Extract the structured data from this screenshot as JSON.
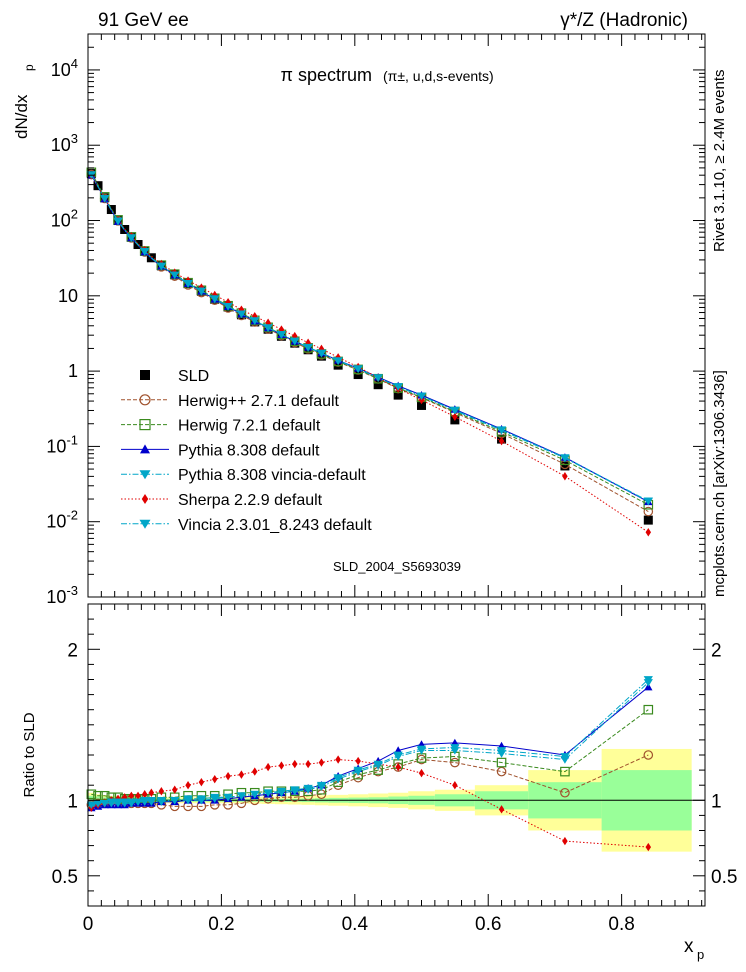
{
  "header": {
    "left": "91 GeV ee",
    "right": "γ*/Z (Hadronic)",
    "side_top": "Rivet 3.1.10, ≥ 2.4M events",
    "side_bottom": "mcplots.cern.ch [arXiv:1306.3436]"
  },
  "chart_data": {
    "type": "line",
    "title_main": "π spectrum",
    "title_sub": "(π±, u,d,s-events)",
    "watermark": "SLD_2004_S5693039",
    "xlabel": "x",
    "xlabel_sub": "p",
    "ylabel": "dN/dx",
    "ylabel_sub": "p",
    "ratio_ylabel": "Ratio to SLD",
    "xlim": [
      0,
      0.925
    ],
    "ylim": [
      0.001,
      30000
    ],
    "yscale": "log",
    "ratio_ylim": [
      0.3,
      2.3
    ],
    "x_ticks": [
      "0",
      "0.2",
      "0.4",
      "0.6",
      "0.8"
    ],
    "y_ticks": [
      "10^-3",
      "10^-2",
      "10^-1",
      "1",
      "10",
      "10^2",
      "10^3",
      "10^4"
    ],
    "ratio_ticks": [
      "0.5",
      "1",
      "2"
    ],
    "legend_position": "bottom-left",
    "x": [
      0.005,
      0.015,
      0.025,
      0.035,
      0.045,
      0.055,
      0.065,
      0.075,
      0.085,
      0.095,
      0.11,
      0.13,
      0.15,
      0.17,
      0.19,
      0.21,
      0.23,
      0.25,
      0.27,
      0.29,
      0.31,
      0.33,
      0.35,
      0.375,
      0.405,
      0.435,
      0.465,
      0.5,
      0.55,
      0.62,
      0.715,
      0.84
    ],
    "series": [
      {
        "name": "SLD",
        "color": "#000000",
        "marker": "square",
        "values": [
          420,
          290,
          200,
          140,
          100,
          76,
          60,
          48,
          39,
          32,
          25,
          19,
          14.5,
          11.5,
          9.0,
          7.1,
          5.6,
          4.5,
          3.6,
          2.9,
          2.35,
          1.92,
          1.58,
          1.2,
          0.9,
          0.66,
          0.48,
          0.35,
          0.225,
          0.125,
          0.055,
          0.0105
        ]
      },
      {
        "name": "Herwig++ 2.7.1 default",
        "color": "#a0522d",
        "marker": "circle-open",
        "line": "dashed",
        "ratio": [
          0.97,
          0.98,
          0.98,
          0.99,
          0.99,
          0.98,
          0.98,
          0.98,
          0.98,
          0.98,
          0.97,
          0.96,
          0.96,
          0.96,
          0.97,
          0.97,
          0.98,
          1.0,
          1.01,
          1.02,
          1.02,
          1.03,
          1.04,
          1.1,
          1.15,
          1.19,
          1.22,
          1.27,
          1.25,
          1.19,
          1.05,
          1.3
        ]
      },
      {
        "name": "Herwig 7.2.1 default",
        "color": "#3a8a1e",
        "marker": "square-open",
        "line": "dashed",
        "ratio": [
          1.04,
          1.03,
          1.03,
          1.02,
          1.02,
          1.01,
          1.01,
          1.01,
          1.01,
          1.01,
          1.02,
          1.02,
          1.03,
          1.03,
          1.03,
          1.04,
          1.05,
          1.05,
          1.06,
          1.06,
          1.06,
          1.06,
          1.07,
          1.12,
          1.17,
          1.2,
          1.24,
          1.28,
          1.29,
          1.25,
          1.19,
          1.6
        ]
      },
      {
        "name": "Pythia 8.308 default",
        "color": "#0000cc",
        "marker": "triangle-up",
        "line": "solid",
        "ratio": [
          0.95,
          0.96,
          0.97,
          0.97,
          0.97,
          0.97,
          0.98,
          0.98,
          0.98,
          0.98,
          0.99,
          0.99,
          1.0,
          1.0,
          1.0,
          1.01,
          1.02,
          1.03,
          1.04,
          1.05,
          1.06,
          1.08,
          1.1,
          1.16,
          1.21,
          1.26,
          1.33,
          1.37,
          1.38,
          1.36,
          1.3,
          1.75
        ]
      },
      {
        "name": "Pythia 8.308 vincia-default",
        "color": "#00a6c8",
        "marker": "triangle-down",
        "line": "dashdot",
        "ratio": [
          0.96,
          0.97,
          0.98,
          0.98,
          0.98,
          0.98,
          0.98,
          0.99,
          0.99,
          0.99,
          0.99,
          1.0,
          1.0,
          1.0,
          1.01,
          1.02,
          1.03,
          1.04,
          1.05,
          1.05,
          1.06,
          1.07,
          1.09,
          1.14,
          1.19,
          1.23,
          1.29,
          1.33,
          1.33,
          1.31,
          1.27,
          1.78
        ]
      },
      {
        "name": "Sherpa 2.2.9 default",
        "color": "#e00000",
        "marker": "diamond",
        "line": "dotted",
        "ratio": [
          0.95,
          0.97,
          0.98,
          1.0,
          1.01,
          1.02,
          1.03,
          1.03,
          1.04,
          1.05,
          1.06,
          1.07,
          1.1,
          1.12,
          1.14,
          1.16,
          1.17,
          1.19,
          1.22,
          1.23,
          1.24,
          1.24,
          1.25,
          1.27,
          1.26,
          1.24,
          1.22,
          1.18,
          1.1,
          0.94,
          0.73,
          0.69
        ]
      },
      {
        "name": "Vincia 2.3.01_8.243 default",
        "color": "#00a6c8",
        "marker": "triangle-down",
        "line": "dashdot",
        "ratio": [
          0.97,
          0.98,
          0.98,
          0.99,
          0.99,
          0.99,
          0.99,
          0.99,
          1.0,
          1.0,
          1.0,
          1.0,
          1.01,
          1.01,
          1.02,
          1.02,
          1.03,
          1.04,
          1.05,
          1.06,
          1.07,
          1.08,
          1.1,
          1.15,
          1.2,
          1.24,
          1.3,
          1.34,
          1.35,
          1.33,
          1.29,
          1.8
        ]
      }
    ],
    "uncertainty_bands": {
      "x_edges": [
        0.0,
        0.01,
        0.02,
        0.03,
        0.04,
        0.05,
        0.06,
        0.07,
        0.08,
        0.09,
        0.1,
        0.12,
        0.14,
        0.16,
        0.18,
        0.2,
        0.22,
        0.24,
        0.26,
        0.28,
        0.3,
        0.32,
        0.34,
        0.36,
        0.39,
        0.42,
        0.45,
        0.48,
        0.52,
        0.58,
        0.66,
        0.77,
        0.905
      ],
      "stat_rel": [
        0.03,
        0.025,
        0.02,
        0.018,
        0.016,
        0.015,
        0.014,
        0.013,
        0.012,
        0.011,
        0.01,
        0.01,
        0.01,
        0.01,
        0.01,
        0.01,
        0.01,
        0.01,
        0.01,
        0.01,
        0.01,
        0.012,
        0.014,
        0.016,
        0.018,
        0.02,
        0.025,
        0.03,
        0.04,
        0.06,
        0.12,
        0.2
      ],
      "total_rel": [
        0.05,
        0.04,
        0.035,
        0.03,
        0.028,
        0.026,
        0.024,
        0.022,
        0.02,
        0.02,
        0.02,
        0.02,
        0.02,
        0.02,
        0.02,
        0.02,
        0.02,
        0.022,
        0.024,
        0.026,
        0.028,
        0.03,
        0.033,
        0.036,
        0.04,
        0.045,
        0.05,
        0.06,
        0.07,
        0.1,
        0.2,
        0.34
      ],
      "stat_color": "#99ff99",
      "total_color": "#ffff99"
    }
  }
}
